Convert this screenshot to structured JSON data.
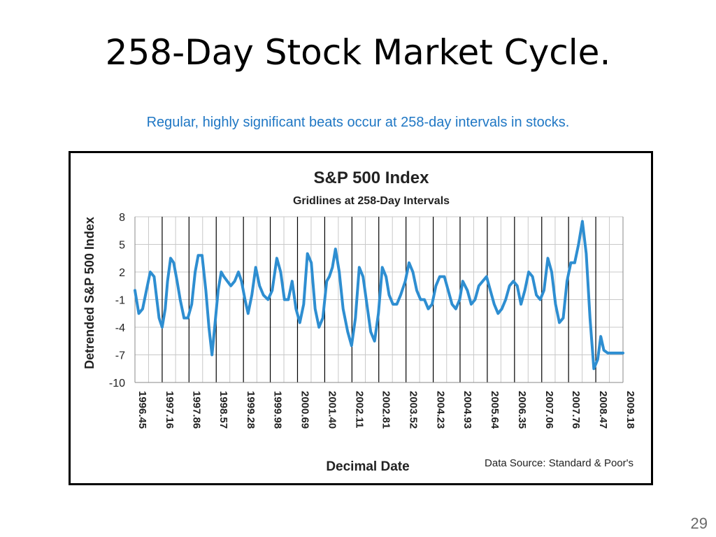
{
  "slide": {
    "title": "258-Day Stock Market Cycle.",
    "subtitle": "Regular, highly significant beats occur at 258-day intervals in stocks.",
    "page_number": "29"
  },
  "colors": {
    "line": "#2e8ed1",
    "subtitle": "#1f77c4",
    "gridline": "#000000",
    "minor_gridline": "#c8c8c8"
  },
  "chart_data": {
    "type": "line",
    "title": "S&P 500 Index",
    "subtitle": "Gridlines at 258-Day Intervals",
    "xlabel": "Decimal Date",
    "ylabel": "Detrended S&P 500 Index",
    "source_note": "Data Source:  Standard & Poor's",
    "xlim": [
      1996.45,
      2009.18
    ],
    "ylim": [
      -10,
      8
    ],
    "grid": true,
    "legend": "none",
    "x_ticks": [
      1996.45,
      1997.16,
      1997.86,
      1998.57,
      1999.28,
      1999.98,
      2000.69,
      2001.4,
      2002.11,
      2002.81,
      2003.52,
      2004.23,
      2004.93,
      2005.64,
      2006.35,
      2007.06,
      2007.76,
      2008.47,
      2009.18
    ],
    "x_tick_labels": [
      "1996.45",
      "1997.16",
      "1997.86",
      "1998.57",
      "1999.28",
      "1999.98",
      "2000.69",
      "2001.40",
      "2002.11",
      "2002.81",
      "2003.52",
      "2004.23",
      "2004.93",
      "2005.64",
      "2006.35",
      "2007.06",
      "2007.76",
      "2008.47",
      "2009.18"
    ],
    "y_ticks": [
      8,
      5,
      2,
      -1,
      -4,
      -7,
      -10
    ],
    "y_tick_labels": [
      "8",
      "5",
      "2",
      "-1",
      "-4",
      "-7",
      "-10"
    ],
    "series": [
      {
        "x": [
          1996.45,
          1996.55,
          1996.65,
          1996.75,
          1996.85,
          1996.95,
          1997.02,
          1997.08,
          1997.16,
          1997.24,
          1997.3,
          1997.38,
          1997.46,
          1997.55,
          1997.63,
          1997.73,
          1997.83,
          1997.93,
          1998.02,
          1998.1,
          1998.2,
          1998.3,
          1998.38,
          1998.46,
          1998.53,
          1998.62,
          1998.7,
          1998.77,
          1998.86,
          1998.95,
          1999.05,
          1999.15,
          1999.23,
          1999.32,
          1999.4,
          1999.5,
          1999.6,
          1999.7,
          1999.8,
          1999.92,
          2000.03,
          2000.15,
          2000.25,
          2000.35,
          2000.45,
          2000.55,
          2000.65,
          2000.75,
          2000.85,
          2000.95,
          2001.05,
          2001.15,
          2001.25,
          2001.35,
          2001.45,
          2001.52,
          2001.6,
          2001.68,
          2001.78,
          2001.88,
          2002.0,
          2002.1,
          2002.2,
          2002.3,
          2002.4,
          2002.5,
          2002.6,
          2002.7,
          2002.8,
          2002.9,
          2003.0,
          2003.08,
          2003.18,
          2003.28,
          2003.38,
          2003.5,
          2003.6,
          2003.7,
          2003.8,
          2003.9,
          2004.0,
          2004.1,
          2004.2,
          2004.3,
          2004.4,
          2004.52,
          2004.62,
          2004.72,
          2004.82,
          2004.92,
          2005.0,
          2005.12,
          2005.22,
          2005.32,
          2005.42,
          2005.52,
          2005.62,
          2005.72,
          2005.82,
          2005.92,
          2006.02,
          2006.12,
          2006.22,
          2006.32,
          2006.42,
          2006.52,
          2006.62,
          2006.72,
          2006.82,
          2006.92,
          2007.02,
          2007.12,
          2007.22,
          2007.32,
          2007.42,
          2007.52,
          2007.62,
          2007.72,
          2007.82,
          2007.92,
          2008.02,
          2008.12,
          2008.22,
          2008.32,
          2008.42,
          2008.52,
          2008.6,
          2008.68,
          2008.78,
          2008.88,
          2008.98,
          2009.08,
          2009.18
        ],
        "y": [
          0,
          -2.5,
          -2,
          0,
          2,
          1.5,
          -1,
          -3,
          -4,
          -2,
          1,
          3.5,
          3,
          1,
          -1,
          -3,
          -3,
          -1.5,
          2,
          3.8,
          3.8,
          0,
          -4,
          -7,
          -4,
          0,
          2,
          1.5,
          1,
          0.5,
          1,
          2,
          1,
          -1,
          -2.5,
          -0.5,
          2.5,
          0.5,
          -0.5,
          -1,
          0,
          3.5,
          2,
          -1,
          -1,
          1,
          -2,
          -3.5,
          -1.5,
          4,
          3,
          -2,
          -4,
          -3,
          1,
          1.5,
          2.5,
          4.5,
          2,
          -2,
          -4.5,
          -6,
          -3,
          2.5,
          1.5,
          -1.5,
          -4.5,
          -5.5,
          -2.5,
          2.5,
          1.5,
          -0.5,
          -1.5,
          -1.5,
          -0.5,
          1,
          3,
          2,
          0,
          -1,
          -1,
          -2,
          -1.5,
          0.5,
          1.5,
          1.5,
          0,
          -1.5,
          -2,
          -1,
          1,
          0,
          -1.5,
          -1,
          0.5,
          1,
          1.5,
          0,
          -1.5,
          -2.5,
          -2,
          -1,
          0.5,
          1,
          0.5,
          -1.5,
          0,
          2,
          1.5,
          -0.5,
          -1,
          0,
          3.5,
          2,
          -1.5,
          -3.5,
          -3,
          1,
          3,
          3,
          5,
          7.5,
          4,
          -3,
          -8.5,
          -7.5,
          -5,
          -6.5,
          -6.8,
          -6.8,
          -6.8,
          -6.8,
          -6.8
        ]
      }
    ]
  }
}
